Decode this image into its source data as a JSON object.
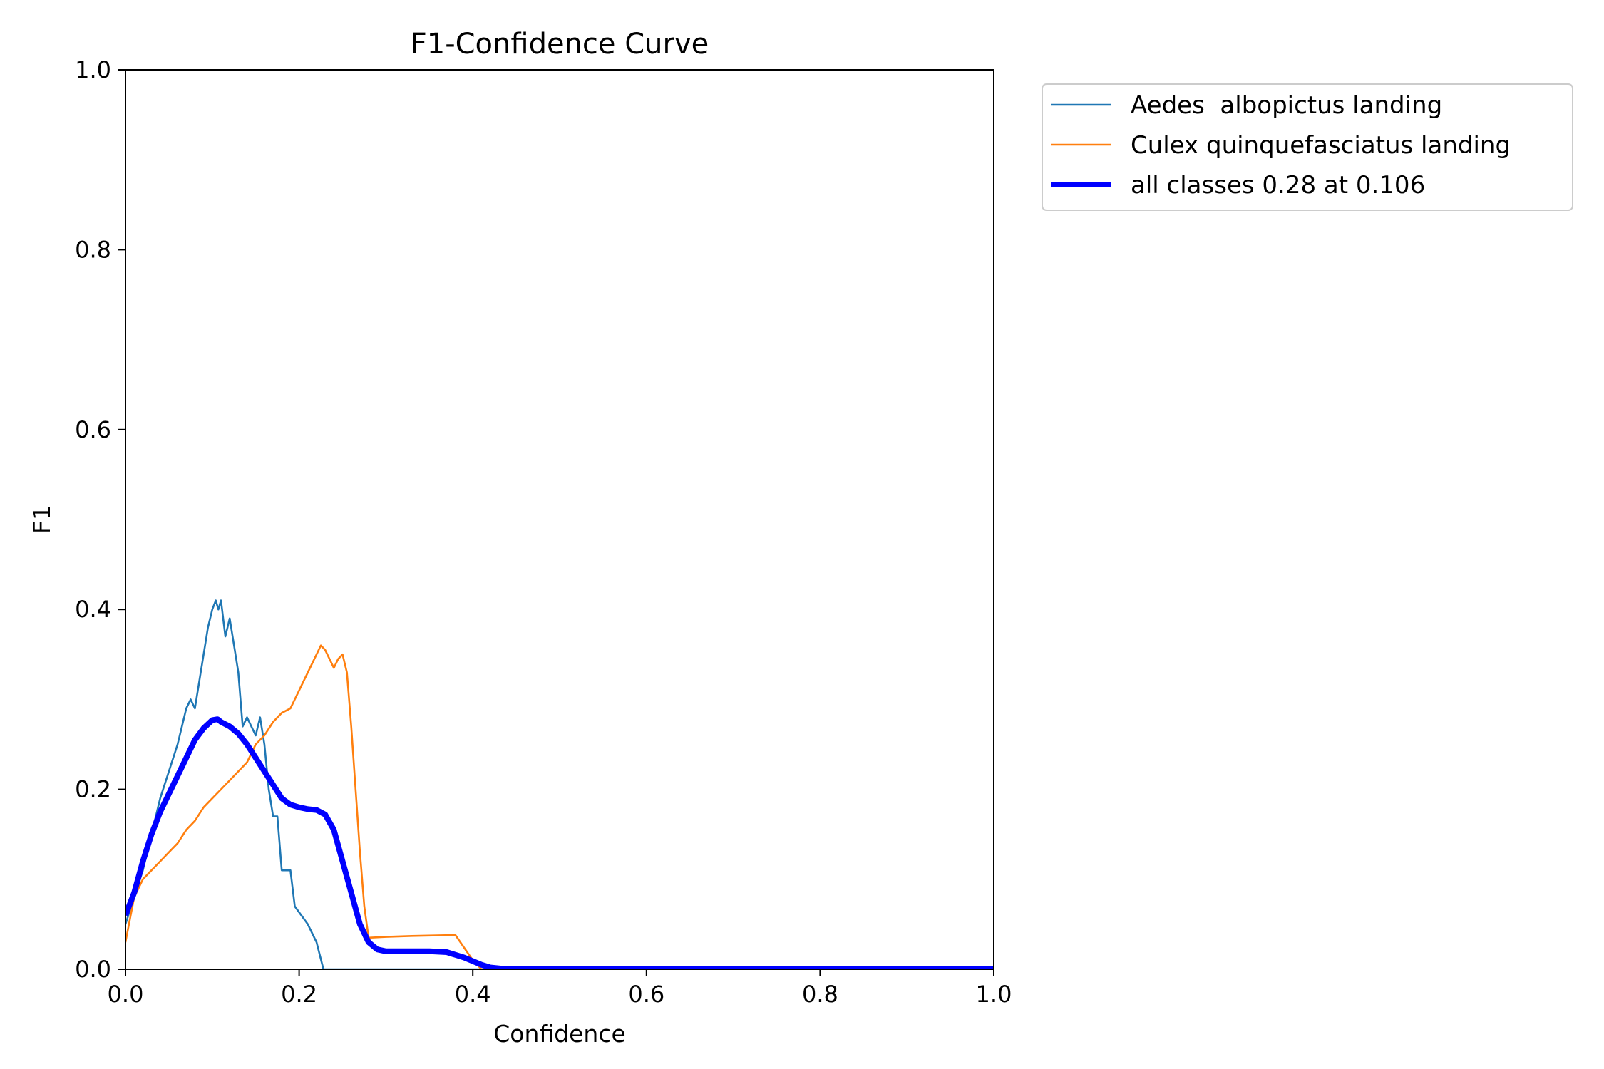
{
  "chart_data": {
    "type": "line",
    "title": "F1-Confidence Curve",
    "xlabel": "Confidence",
    "ylabel": "F1",
    "xlim": [
      0.0,
      1.0
    ],
    "ylim": [
      0.0,
      1.0
    ],
    "xticks": [
      "0.0",
      "0.2",
      "0.4",
      "0.6",
      "0.8",
      "1.0"
    ],
    "yticks": [
      "0.0",
      "0.2",
      "0.4",
      "0.6",
      "0.8",
      "1.0"
    ],
    "grid": false,
    "legend_position": "outside top-right",
    "series": [
      {
        "name": "Aedes  albopictus landing",
        "color": "#1f77b4",
        "points": [
          [
            0.0,
            0.05
          ],
          [
            0.01,
            0.08
          ],
          [
            0.02,
            0.11
          ],
          [
            0.03,
            0.15
          ],
          [
            0.035,
            0.17
          ],
          [
            0.04,
            0.19
          ],
          [
            0.05,
            0.22
          ],
          [
            0.06,
            0.25
          ],
          [
            0.065,
            0.27
          ],
          [
            0.07,
            0.29
          ],
          [
            0.075,
            0.3
          ],
          [
            0.08,
            0.29
          ],
          [
            0.085,
            0.32
          ],
          [
            0.09,
            0.35
          ],
          [
            0.095,
            0.38
          ],
          [
            0.1,
            0.4
          ],
          [
            0.104,
            0.41
          ],
          [
            0.107,
            0.4
          ],
          [
            0.11,
            0.41
          ],
          [
            0.115,
            0.37
          ],
          [
            0.12,
            0.39
          ],
          [
            0.125,
            0.36
          ],
          [
            0.13,
            0.33
          ],
          [
            0.135,
            0.27
          ],
          [
            0.14,
            0.28
          ],
          [
            0.145,
            0.27
          ],
          [
            0.15,
            0.26
          ],
          [
            0.155,
            0.28
          ],
          [
            0.16,
            0.25
          ],
          [
            0.165,
            0.2
          ],
          [
            0.17,
            0.17
          ],
          [
            0.175,
            0.17
          ],
          [
            0.18,
            0.11
          ],
          [
            0.19,
            0.11
          ],
          [
            0.195,
            0.07
          ],
          [
            0.21,
            0.05
          ],
          [
            0.22,
            0.03
          ],
          [
            0.228,
            0.0
          ],
          [
            1.0,
            0.0
          ]
        ]
      },
      {
        "name": "Culex quinquefasciatus landing",
        "color": "#ff7f0e",
        "points": [
          [
            0.0,
            0.03
          ],
          [
            0.01,
            0.08
          ],
          [
            0.02,
            0.1
          ],
          [
            0.03,
            0.11
          ],
          [
            0.04,
            0.12
          ],
          [
            0.05,
            0.13
          ],
          [
            0.06,
            0.14
          ],
          [
            0.07,
            0.155
          ],
          [
            0.08,
            0.165
          ],
          [
            0.09,
            0.18
          ],
          [
            0.1,
            0.19
          ],
          [
            0.11,
            0.2
          ],
          [
            0.12,
            0.21
          ],
          [
            0.13,
            0.22
          ],
          [
            0.14,
            0.23
          ],
          [
            0.15,
            0.25
          ],
          [
            0.16,
            0.26
          ],
          [
            0.17,
            0.275
          ],
          [
            0.18,
            0.285
          ],
          [
            0.19,
            0.29
          ],
          [
            0.2,
            0.31
          ],
          [
            0.21,
            0.33
          ],
          [
            0.22,
            0.35
          ],
          [
            0.225,
            0.36
          ],
          [
            0.23,
            0.355
          ],
          [
            0.235,
            0.345
          ],
          [
            0.24,
            0.335
          ],
          [
            0.245,
            0.345
          ],
          [
            0.25,
            0.35
          ],
          [
            0.255,
            0.33
          ],
          [
            0.26,
            0.27
          ],
          [
            0.265,
            0.2
          ],
          [
            0.27,
            0.13
          ],
          [
            0.275,
            0.07
          ],
          [
            0.28,
            0.035
          ],
          [
            0.3,
            0.036
          ],
          [
            0.33,
            0.037
          ],
          [
            0.38,
            0.038
          ],
          [
            0.4,
            0.01
          ],
          [
            0.41,
            0.0
          ],
          [
            1.0,
            0.0
          ]
        ]
      },
      {
        "name": "all classes 0.28 at 0.106",
        "color": "#0000ff",
        "bold": true,
        "points": [
          [
            0.0,
            0.06
          ],
          [
            0.01,
            0.085
          ],
          [
            0.02,
            0.12
          ],
          [
            0.03,
            0.15
          ],
          [
            0.04,
            0.175
          ],
          [
            0.05,
            0.195
          ],
          [
            0.06,
            0.215
          ],
          [
            0.07,
            0.235
          ],
          [
            0.08,
            0.255
          ],
          [
            0.09,
            0.268
          ],
          [
            0.1,
            0.277
          ],
          [
            0.106,
            0.278
          ],
          [
            0.11,
            0.275
          ],
          [
            0.12,
            0.27
          ],
          [
            0.13,
            0.262
          ],
          [
            0.14,
            0.25
          ],
          [
            0.15,
            0.235
          ],
          [
            0.16,
            0.22
          ],
          [
            0.17,
            0.205
          ],
          [
            0.18,
            0.19
          ],
          [
            0.19,
            0.183
          ],
          [
            0.2,
            0.18
          ],
          [
            0.21,
            0.178
          ],
          [
            0.22,
            0.177
          ],
          [
            0.23,
            0.172
          ],
          [
            0.24,
            0.155
          ],
          [
            0.25,
            0.12
          ],
          [
            0.26,
            0.085
          ],
          [
            0.27,
            0.05
          ],
          [
            0.28,
            0.03
          ],
          [
            0.29,
            0.022
          ],
          [
            0.3,
            0.02
          ],
          [
            0.32,
            0.02
          ],
          [
            0.35,
            0.02
          ],
          [
            0.37,
            0.019
          ],
          [
            0.39,
            0.013
          ],
          [
            0.41,
            0.005
          ],
          [
            0.42,
            0.002
          ],
          [
            0.44,
            0.0
          ],
          [
            1.0,
            0.0
          ]
        ]
      }
    ]
  }
}
